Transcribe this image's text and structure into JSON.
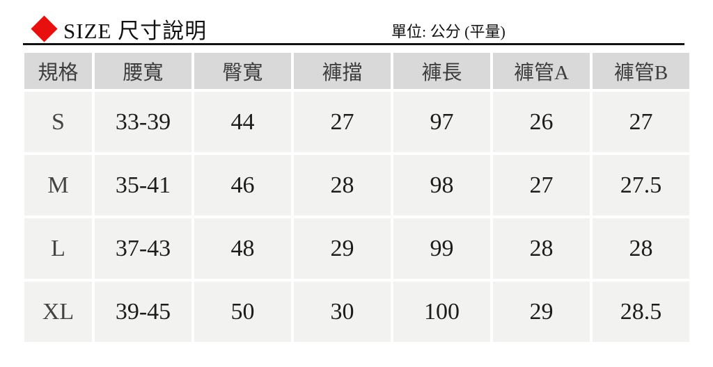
{
  "header": {
    "title": "SIZE 尺寸說明",
    "unit_note": "單位: 公分 (平量)",
    "diamond_color": "#e8100e",
    "rule_color": "#111111"
  },
  "table": {
    "header_bg": "#d9d9d9",
    "row_bg": "#f2f2f1",
    "columns": [
      "規格",
      "腰寬",
      "臀寬",
      "褲擋",
      "褲長",
      "褲管A",
      "褲管B"
    ],
    "rows": [
      [
        "S",
        "33-39",
        "44",
        "27",
        "97",
        "26",
        "27"
      ],
      [
        "M",
        "35-41",
        "46",
        "28",
        "98",
        "27",
        "27.5"
      ],
      [
        "L",
        "37-43",
        "48",
        "29",
        "99",
        "28",
        "28"
      ],
      [
        "XL",
        "39-45",
        "50",
        "30",
        "100",
        "29",
        "28.5"
      ]
    ]
  }
}
